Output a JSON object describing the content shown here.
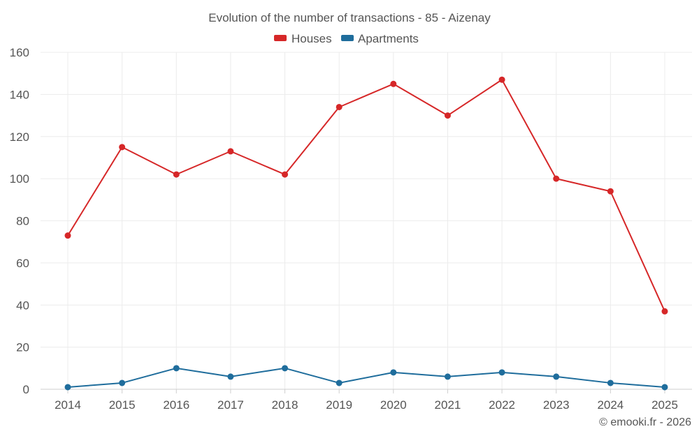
{
  "chart_data": {
    "type": "line",
    "title": "Evolution of the number of transactions - 85 - Aizenay",
    "categories": [
      "2014",
      "2015",
      "2016",
      "2017",
      "2018",
      "2019",
      "2020",
      "2021",
      "2022",
      "2023",
      "2024",
      "2025"
    ],
    "series": [
      {
        "name": "Houses",
        "color": "#d62728",
        "values": [
          73,
          115,
          102,
          113,
          102,
          134,
          145,
          130,
          147,
          100,
          94,
          37
        ]
      },
      {
        "name": "Apartments",
        "color": "#1f6d9c",
        "values": [
          1,
          3,
          10,
          6,
          10,
          3,
          8,
          6,
          8,
          6,
          3,
          1
        ]
      }
    ],
    "xlabel": "",
    "ylabel": "",
    "ylim": [
      0,
      160
    ],
    "yticks": [
      "0",
      "20",
      "40",
      "60",
      "80",
      "100",
      "120",
      "140",
      "160"
    ],
    "grid": true,
    "legend": "top-center"
  },
  "credit": "© emooki.fr - 2026"
}
